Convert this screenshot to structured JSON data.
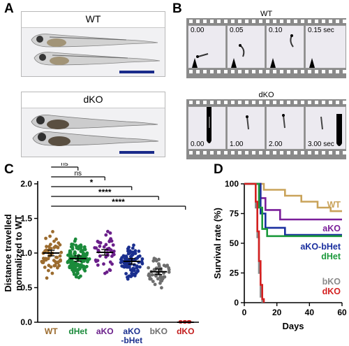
{
  "panels": {
    "a": "A",
    "b": "B",
    "c": "C",
    "d": "D"
  },
  "panelA": {
    "top_label": "WT",
    "bottom_label": "dKO"
  },
  "panelB": {
    "top_title": "WT",
    "bottom_title": "dKO",
    "top_times": [
      "0.00",
      "0.05",
      "0.10",
      "0.15 sec"
    ],
    "bottom_times": [
      "0.00",
      "1.00",
      "2.00",
      "3.00 sec"
    ]
  },
  "chart_data": [
    {
      "type": "scatter",
      "ylabel": "Distance travelled\nnormalized to WT",
      "ylim": [
        0,
        2.0
      ],
      "yticks": [
        "0.0",
        "0.5",
        "1.0",
        "1.5",
        "2.0"
      ],
      "categories": [
        "WT",
        "dHet",
        "aKO",
        "aKO\n-bHet",
        "bKO",
        "dKO"
      ],
      "category_colors": [
        "#9b6b2e",
        "#1a8a3a",
        "#6a1f8a",
        "#1a2f8f",
        "#6e6e6e",
        "#c21b1b"
      ],
      "means": [
        1.0,
        0.92,
        1.01,
        0.88,
        0.73,
        0.0
      ],
      "counts": [
        55,
        140,
        45,
        85,
        45,
        12
      ],
      "spreads": [
        0.28,
        0.22,
        0.27,
        0.19,
        0.2,
        0.01
      ],
      "significance": [
        {
          "from": 0,
          "to": 1,
          "label": "ns"
        },
        {
          "from": 0,
          "to": 2,
          "label": "ns"
        },
        {
          "from": 0,
          "to": 3,
          "label": "*"
        },
        {
          "from": 0,
          "to": 4,
          "label": "****"
        },
        {
          "from": 0,
          "to": 5,
          "label": "****"
        }
      ]
    },
    {
      "type": "line",
      "ylabel": "Survival rate (%)",
      "xlabel": "Days",
      "xlim": [
        0,
        60
      ],
      "ylim": [
        0,
        100
      ],
      "xticks": [
        "0",
        "20",
        "40",
        "60"
      ],
      "yticks": [
        "0",
        "25",
        "50",
        "75",
        "100"
      ],
      "series": [
        {
          "name": "WT",
          "color": "#c9a35a",
          "points": [
            [
              0,
              100
            ],
            [
              12,
              100
            ],
            [
              12,
              95
            ],
            [
              25,
              95
            ],
            [
              25,
              90
            ],
            [
              35,
              90
            ],
            [
              35,
              85
            ],
            [
              45,
              85
            ],
            [
              45,
              80
            ],
            [
              53,
              80
            ],
            [
              53,
              77
            ],
            [
              60,
              77
            ]
          ]
        },
        {
          "name": "aKO",
          "color": "#7a1f9a",
          "points": [
            [
              0,
              100
            ],
            [
              10,
              100
            ],
            [
              10,
              88
            ],
            [
              13,
              88
            ],
            [
              13,
              78
            ],
            [
              22,
              78
            ],
            [
              22,
              70
            ],
            [
              60,
              70
            ]
          ]
        },
        {
          "name": "aKO-bHet",
          "color": "#1a2f9f",
          "points": [
            [
              0,
              100
            ],
            [
              10,
              100
            ],
            [
              10,
              75
            ],
            [
              13,
              75
            ],
            [
              13,
              63
            ],
            [
              25,
              63
            ],
            [
              25,
              57
            ],
            [
              60,
              57
            ]
          ]
        },
        {
          "name": "dHet",
          "color": "#1c9a3c",
          "points": [
            [
              0,
              100
            ],
            [
              9,
              100
            ],
            [
              9,
              80
            ],
            [
              11,
              80
            ],
            [
              11,
              62
            ],
            [
              14,
              62
            ],
            [
              14,
              56
            ],
            [
              60,
              56
            ]
          ]
        },
        {
          "name": "bKO",
          "color": "#8a8a8a",
          "points": [
            [
              0,
              100
            ],
            [
              7,
              100
            ],
            [
              7,
              80
            ],
            [
              8,
              80
            ],
            [
              8,
              55
            ],
            [
              9,
              55
            ],
            [
              9,
              25
            ],
            [
              10,
              25
            ],
            [
              10,
              5
            ],
            [
              11,
              5
            ],
            [
              11,
              0
            ]
          ]
        },
        {
          "name": "dKO",
          "color": "#d42020",
          "points": [
            [
              0,
              100
            ],
            [
              7,
              100
            ],
            [
              7,
              85
            ],
            [
              8,
              85
            ],
            [
              8,
              60
            ],
            [
              9,
              60
            ],
            [
              9,
              35
            ],
            [
              10,
              35
            ],
            [
              10,
              15
            ],
            [
              11,
              15
            ],
            [
              11,
              3
            ],
            [
              12,
              3
            ],
            [
              12,
              0
            ]
          ]
        }
      ]
    }
  ]
}
